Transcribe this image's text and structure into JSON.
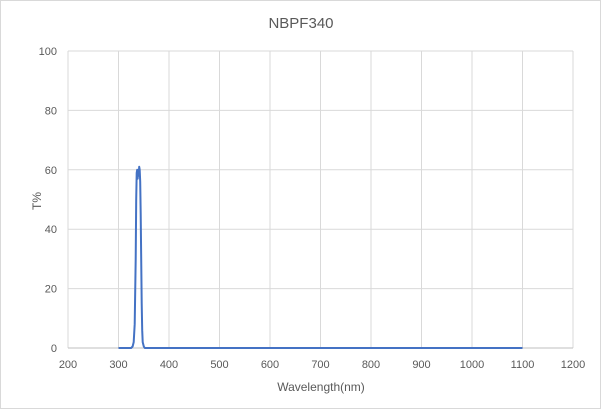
{
  "chart_data": {
    "type": "line",
    "title": "NBPF340",
    "xlabel": "Wavelength(nm)",
    "ylabel": "T%",
    "xlim": [
      200,
      1200
    ],
    "ylim": [
      0,
      100
    ],
    "xticks": [
      200,
      300,
      400,
      500,
      600,
      700,
      800,
      900,
      1000,
      1100,
      1200
    ],
    "yticks": [
      0,
      20,
      40,
      60,
      80,
      100
    ],
    "grid": true,
    "series": [
      {
        "name": "NBPF340",
        "color": "#4472c4",
        "x": [
          300,
          320,
          325,
          328,
          330,
          332,
          334,
          335,
          336,
          337,
          338,
          339,
          340,
          341,
          342,
          343,
          344,
          345,
          346,
          347,
          348,
          350,
          352,
          355,
          360,
          400,
          500,
          600,
          700,
          800,
          900,
          1000,
          1100
        ],
        "y": [
          0,
          0,
          0,
          0.5,
          2,
          8,
          30,
          50,
          59,
          60,
          57,
          60,
          58,
          61,
          60,
          56,
          45,
          30,
          15,
          6,
          2,
          0.5,
          0,
          0,
          0,
          0,
          0,
          0,
          0,
          0,
          0,
          0,
          0
        ]
      }
    ]
  }
}
